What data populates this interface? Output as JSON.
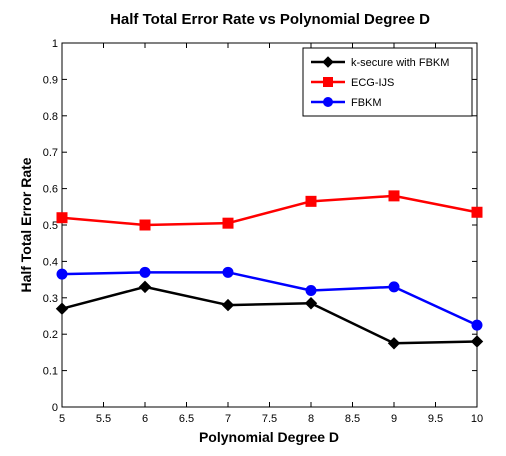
{
  "chart_data": {
    "type": "line",
    "title": "Half Total Error Rate vs Polynomial Degree D",
    "xlabel": "Polynomial Degree D",
    "ylabel": "Half Total Error Rate",
    "xlim": [
      5,
      10
    ],
    "ylim": [
      0,
      1
    ],
    "xticks": [
      "5",
      "5.5",
      "6",
      "6.5",
      "7",
      "7.5",
      "8",
      "8.5",
      "9",
      "9.5",
      "10"
    ],
    "yticks": [
      "0",
      "0.1",
      "0.2",
      "0.3",
      "0.4",
      "0.5",
      "0.6",
      "0.7",
      "0.8",
      "0.9",
      "1"
    ],
    "grid": false,
    "legend_position": "top-right",
    "x": [
      5,
      6,
      7,
      8,
      9,
      10
    ],
    "series": [
      {
        "name": "k-secure with FBKM",
        "values": [
          0.27,
          0.33,
          0.28,
          0.285,
          0.175,
          0.18
        ],
        "color": "#000000",
        "marker": "diamond"
      },
      {
        "name": "ECG-IJS",
        "values": [
          0.52,
          0.5,
          0.505,
          0.565,
          0.58,
          0.535
        ],
        "color": "#ff0000",
        "marker": "square"
      },
      {
        "name": "FBKM",
        "values": [
          0.365,
          0.37,
          0.37,
          0.32,
          0.33,
          0.225
        ],
        "color": "#0000ff",
        "marker": "circle"
      }
    ]
  }
}
